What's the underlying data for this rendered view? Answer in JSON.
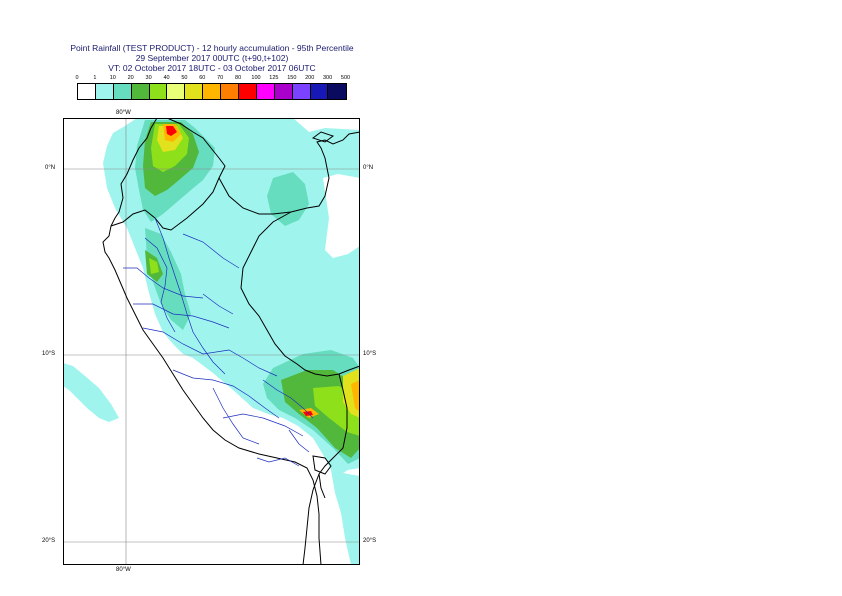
{
  "title": {
    "line1": "Point Rainfall (TEST PRODUCT) - 12 hourly accumulation - 95th Percentile",
    "line2": "29 September 2017 00UTC (t+90,t+102)",
    "line3": "VT: 02 October 2017 18UTC - 03 October 2017 06UTC"
  },
  "colorbar": {
    "ticks": [
      "0",
      "1",
      "10",
      "20",
      "30",
      "40",
      "50",
      "60",
      "70",
      "80",
      "100",
      "125",
      "150",
      "200",
      "300",
      "500"
    ],
    "colors": [
      "#ffffff",
      "#9ff5ee",
      "#66ddbf",
      "#52b83c",
      "#8ee01b",
      "#eaff78",
      "#e1e11e",
      "#ffb600",
      "#ff7f00",
      "#ff0000",
      "#ff00ff",
      "#aa00cc",
      "#7b43ff",
      "#1818b6",
      "#0a0a5e"
    ]
  },
  "map": {
    "lat_labels_left": [
      "0°N",
      "10°S",
      "20°S"
    ],
    "lat_labels_right": [
      "0°N",
      "10°S",
      "20°S"
    ],
    "lon_label_top": "80°W",
    "lon_label_bottom": "80°W"
  }
}
